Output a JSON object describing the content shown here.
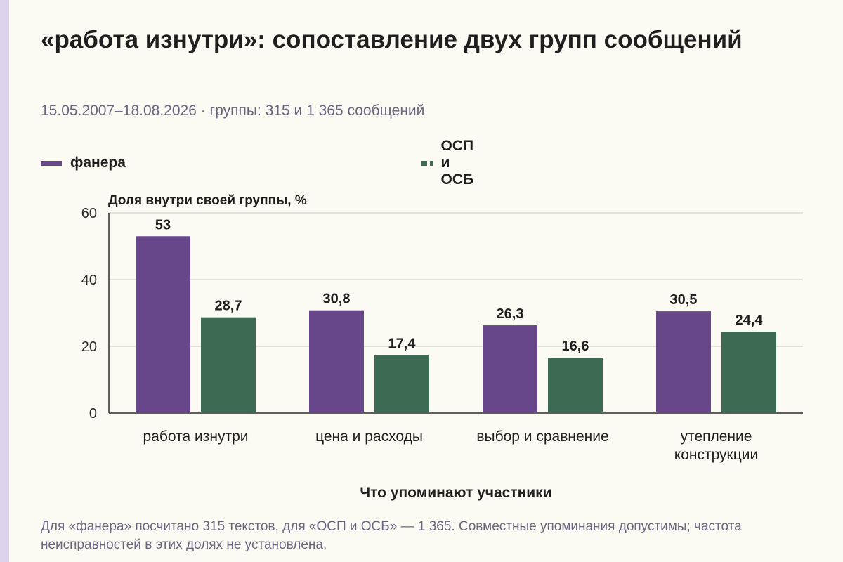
{
  "header": {
    "title": "«работа изнутри»: сопоставление двух групп сообщений",
    "subtitle": "15.05.2007–18.08.2026 · группы: 315 и 1 365 сообщений"
  },
  "colors": {
    "background": "#fcfbf3",
    "accent_strip": "#ddd3ec",
    "series_1": "#674789",
    "series_2": "#3d6a53"
  },
  "chart_data": {
    "type": "bar",
    "categories": [
      "работа изнутри",
      "цена и расходы",
      "выбор и сравнение",
      "утепление конструкции"
    ],
    "series": [
      {
        "name": "фанера",
        "values": [
          53,
          30.8,
          26.3,
          30.5
        ],
        "labels": [
          "53",
          "30,8",
          "26,3",
          "30,5"
        ],
        "color": "#674789"
      },
      {
        "name": "ОСП и ОСБ",
        "values": [
          28.7,
          17.4,
          16.6,
          24.4
        ],
        "labels": [
          "28,7",
          "17,4",
          "16,6",
          "24,4"
        ],
        "color": "#3d6a53"
      }
    ],
    "ylabel": "Доля внутри своей группы, %",
    "xlabel": "Что упоминают участники",
    "ylim": [
      0,
      60
    ],
    "yticks": [
      0,
      20,
      40,
      60
    ],
    "grid": true,
    "legend_position": "top"
  },
  "footnote": "Для «фанера» посчитано 315 текстов, для «ОСП и ОСБ» — 1 365. Совместные упоминания допустимы; частота неисправностей в этих долях не установлена."
}
